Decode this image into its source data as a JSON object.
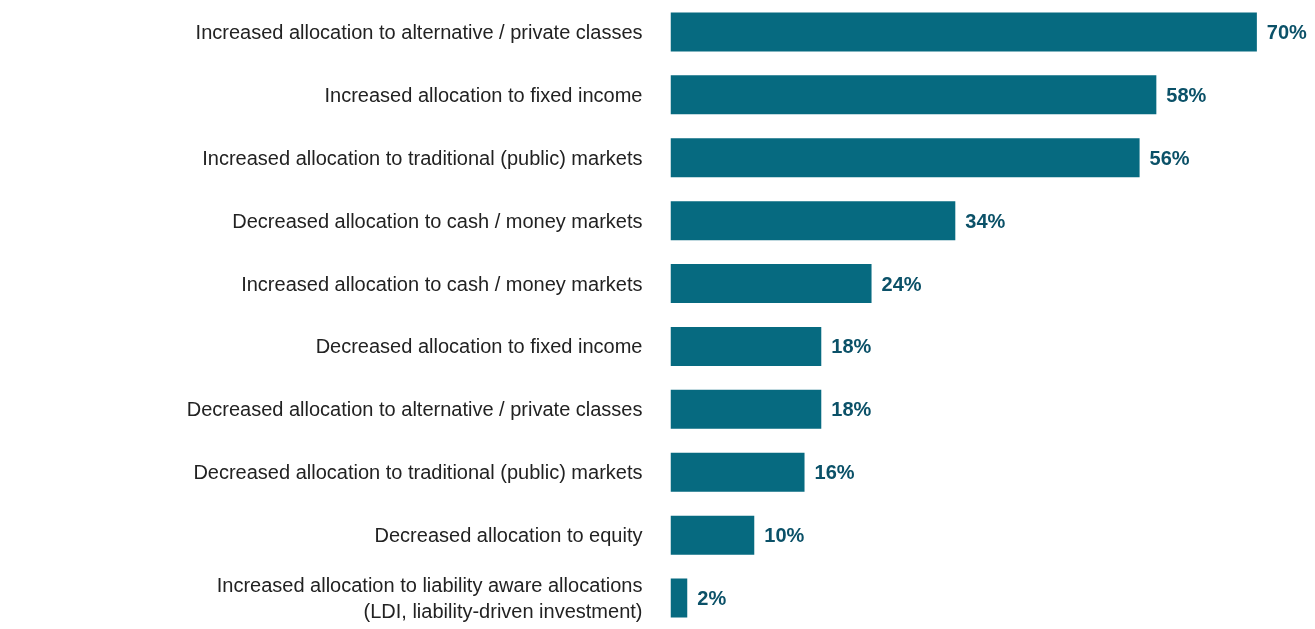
{
  "chart_data": {
    "type": "bar",
    "orientation": "horizontal",
    "color": "#066a80",
    "value_labels": [
      "70%",
      "58%",
      "56%",
      "34%",
      "24%",
      "18%",
      "18%",
      "16%",
      "10%",
      "2%"
    ],
    "categories": [
      "Increased allocation to alternative / private classes",
      "Increased allocation to fixed income",
      "Increased allocation to traditional (public) markets",
      "Decreased allocation to cash / money markets",
      "Increased allocation to cash / money markets",
      "Decreased allocation to fixed income",
      "Decreased allocation to alternative / private classes",
      "Decreased allocation to traditional (public) markets",
      "Decreased allocation to equity",
      "Increased allocation to liability aware allocations\n(LDI, liability-driven investment)"
    ],
    "values": [
      70,
      58,
      56,
      34,
      24,
      18,
      18,
      16,
      10,
      2
    ]
  }
}
